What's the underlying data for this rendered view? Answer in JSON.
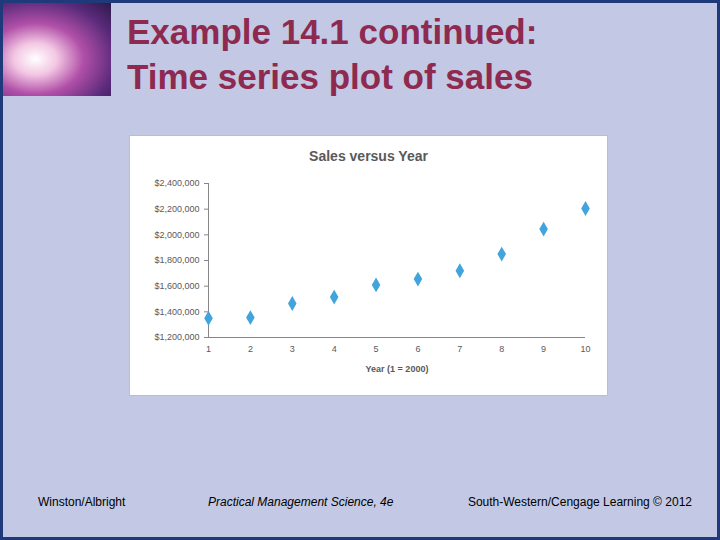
{
  "slide": {
    "title_lines": [
      "Example 14.1 continued:",
      "Time series plot of sales"
    ],
    "footer": {
      "left": "Winston/Albright",
      "center": "Practical Management Science, 4e",
      "right": "South-Western/Cengage Learning © 2012"
    }
  },
  "chart_data": {
    "type": "scatter",
    "title": "Sales versus Year",
    "x_label": "Year (1 = 2000)",
    "x": [
      1,
      2,
      3,
      4,
      5,
      6,
      7,
      8,
      9,
      10
    ],
    "values": [
      1350000,
      1355000,
      1465000,
      1515000,
      1610000,
      1655000,
      1720000,
      1850000,
      2045000,
      2205000
    ],
    "color": "#41a4dc",
    "marker": "diamond",
    "xlim": [
      1,
      10
    ],
    "xticks": [
      1,
      2,
      3,
      4,
      5,
      6,
      7,
      8,
      9,
      10
    ],
    "ylim": [
      1200000,
      2400000
    ],
    "yticks": [
      {
        "value": 1200000,
        "label": "$1,200,000"
      },
      {
        "value": 1400000,
        "label": "$1,400,000"
      },
      {
        "value": 1600000,
        "label": "$1,600,000"
      },
      {
        "value": 1800000,
        "label": "$1,800,000"
      },
      {
        "value": 2000000,
        "label": "$2,000,000"
      },
      {
        "value": 2200000,
        "label": "$2,200,000"
      },
      {
        "value": 2400000,
        "label": "$2,400,000"
      }
    ],
    "grid": false
  }
}
